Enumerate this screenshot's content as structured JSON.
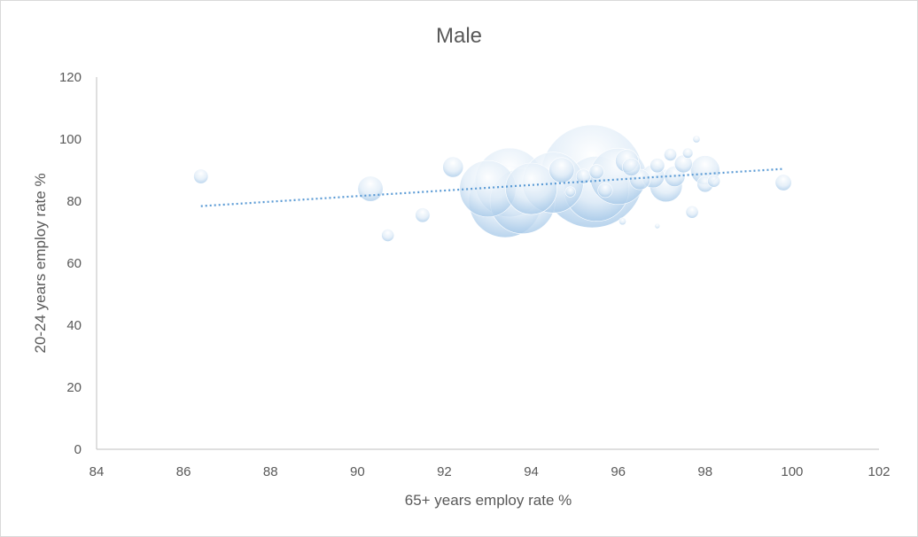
{
  "chart_data": {
    "type": "bubble",
    "title": "Male",
    "xlabel": "65+ years employ rate %",
    "ylabel": "20-24 years employ rate %",
    "xlim": [
      84,
      102
    ],
    "ylim": [
      0,
      120
    ],
    "x_ticks": [
      "84",
      "86",
      "88",
      "90",
      "92",
      "94",
      "96",
      "98",
      "100",
      "102"
    ],
    "y_ticks": [
      "0",
      "20",
      "40",
      "60",
      "80",
      "100",
      "120"
    ],
    "grid": false,
    "legend": "none",
    "bubble_color": "#bdd7ee",
    "trendline": {
      "type": "linear",
      "style": "dotted",
      "color": "#5b9bd5",
      "x": [
        86.4,
        99.8
      ],
      "y": [
        78.4,
        90.4
      ]
    },
    "points": [
      {
        "x": 86.4,
        "y": 88,
        "size": 2
      },
      {
        "x": 90.3,
        "y": 84,
        "size": 6
      },
      {
        "x": 90.7,
        "y": 69,
        "size": 1.5
      },
      {
        "x": 91.5,
        "y": 75.5,
        "size": 2
      },
      {
        "x": 92.2,
        "y": 91,
        "size": 4
      },
      {
        "x": 93.0,
        "y": 84,
        "size": 30
      },
      {
        "x": 93.4,
        "y": 80,
        "size": 50
      },
      {
        "x": 93.5,
        "y": 86,
        "size": 45
      },
      {
        "x": 93.8,
        "y": 80,
        "size": 40
      },
      {
        "x": 94.0,
        "y": 84,
        "size": 25
      },
      {
        "x": 94.5,
        "y": 86,
        "size": 35
      },
      {
        "x": 94.7,
        "y": 90,
        "size": 6
      },
      {
        "x": 94.9,
        "y": 83,
        "size": 1
      },
      {
        "x": 95.2,
        "y": 88,
        "size": 2
      },
      {
        "x": 95.4,
        "y": 88,
        "size": 100
      },
      {
        "x": 95.5,
        "y": 84,
        "size": 40
      },
      {
        "x": 95.5,
        "y": 89.5,
        "size": 2
      },
      {
        "x": 95.7,
        "y": 83.5,
        "size": 2
      },
      {
        "x": 96.0,
        "y": 88,
        "size": 30
      },
      {
        "x": 96.1,
        "y": 73.5,
        "size": 0.5
      },
      {
        "x": 96.2,
        "y": 93,
        "size": 5
      },
      {
        "x": 96.3,
        "y": 91,
        "size": 3
      },
      {
        "x": 96.5,
        "y": 87,
        "size": 4
      },
      {
        "x": 96.8,
        "y": 88,
        "size": 5
      },
      {
        "x": 96.9,
        "y": 91.5,
        "size": 2
      },
      {
        "x": 96.9,
        "y": 72,
        "size": 0.2
      },
      {
        "x": 97.1,
        "y": 85,
        "size": 10
      },
      {
        "x": 97.2,
        "y": 95,
        "size": 1.5
      },
      {
        "x": 97.3,
        "y": 88,
        "size": 4
      },
      {
        "x": 97.5,
        "y": 92,
        "size": 3
      },
      {
        "x": 97.6,
        "y": 95.5,
        "size": 1
      },
      {
        "x": 97.7,
        "y": 76.5,
        "size": 1.5
      },
      {
        "x": 97.8,
        "y": 100,
        "size": 0.5
      },
      {
        "x": 98.0,
        "y": 90,
        "size": 8
      },
      {
        "x": 98.0,
        "y": 85.5,
        "size": 2.5
      },
      {
        "x": 98.2,
        "y": 86.5,
        "size": 1.5
      },
      {
        "x": 99.8,
        "y": 86,
        "size": 2.5
      }
    ]
  }
}
